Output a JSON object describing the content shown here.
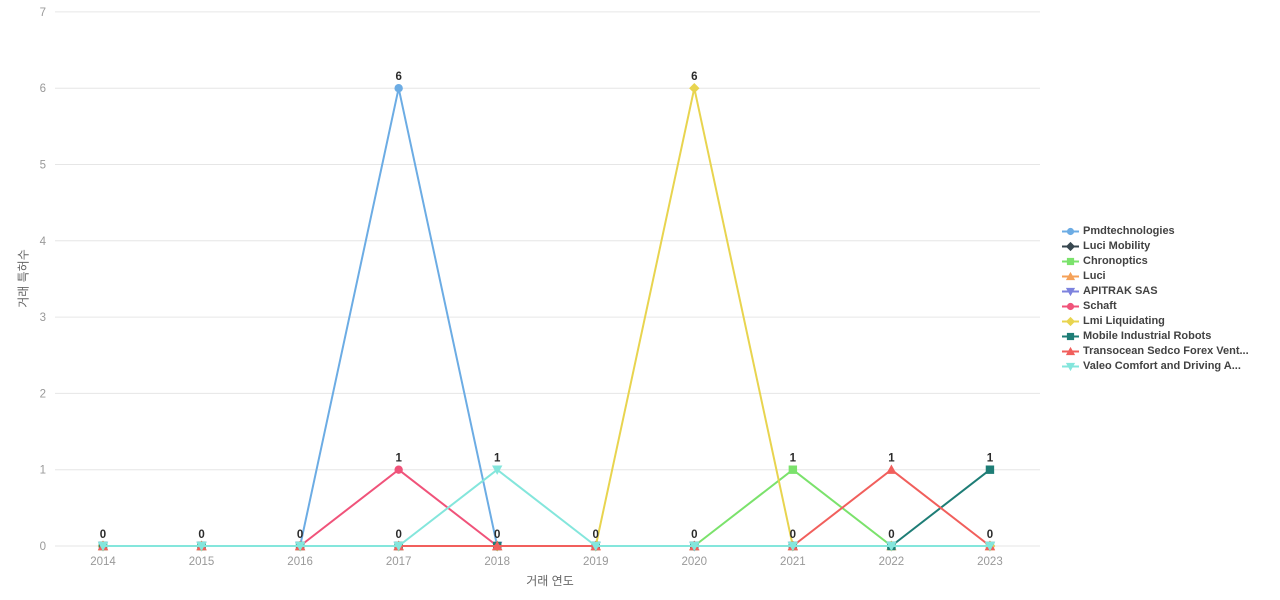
{
  "chart_data": {
    "type": "line",
    "title": "",
    "xlabel": "거래 연도",
    "ylabel": "거래 특허수",
    "x": [
      "2014",
      "2015",
      "2016",
      "2017",
      "2018",
      "2019",
      "2020",
      "2021",
      "2022",
      "2023"
    ],
    "ylim": [
      0,
      7
    ],
    "yticks": [
      0,
      1,
      2,
      3,
      4,
      5,
      6,
      7
    ],
    "grid": "horizontal",
    "legend_position": "right",
    "data_label_color": "#2b2b2b",
    "grid_color": "#e6e6e6",
    "tick_label_color": "#999999",
    "series": [
      {
        "name": "Pmdtechnologies",
        "color": "#6cace4",
        "symbol": "circle",
        "values": [
          0,
          0,
          0,
          6,
          0,
          0,
          0,
          0,
          0,
          0
        ]
      },
      {
        "name": "Luci Mobility",
        "color": "#37474f",
        "symbol": "diamond",
        "values": [
          0,
          0,
          0,
          0,
          0,
          0,
          0,
          0,
          0,
          0
        ]
      },
      {
        "name": "Chronoptics",
        "color": "#7be26c",
        "symbol": "square",
        "values": [
          0,
          0,
          0,
          0,
          0,
          0,
          0,
          1,
          0,
          0
        ]
      },
      {
        "name": "Luci",
        "color": "#f5a158",
        "symbol": "triangle-up",
        "values": [
          0,
          0,
          0,
          0,
          0,
          0,
          0,
          0,
          0,
          0
        ]
      },
      {
        "name": "APITRAK SAS",
        "color": "#7c82de",
        "symbol": "triangle-down",
        "values": [
          0,
          0,
          0,
          0,
          0,
          0,
          0,
          0,
          0,
          0
        ]
      },
      {
        "name": "Schaft",
        "color": "#f0537a",
        "symbol": "circle",
        "values": [
          0,
          0,
          0,
          1,
          0,
          0,
          0,
          0,
          0,
          0
        ]
      },
      {
        "name": "Lmi Liquidating",
        "color": "#e8d44f",
        "symbol": "diamond",
        "values": [
          0,
          0,
          0,
          0,
          0,
          0,
          6,
          0,
          0,
          0
        ]
      },
      {
        "name": "Mobile Industrial Robots",
        "color": "#1e7d76",
        "symbol": "square",
        "values": [
          0,
          0,
          0,
          0,
          0,
          0,
          0,
          0,
          0,
          1
        ]
      },
      {
        "name": "Transocean Sedco Forex Vent...",
        "color": "#f15f5c",
        "symbol": "triangle-up",
        "values": [
          0,
          0,
          0,
          0,
          0,
          0,
          0,
          0,
          1,
          0
        ]
      },
      {
        "name": "Valeo Comfort and Driving A...",
        "color": "#84e6dc",
        "symbol": "triangle-down",
        "values": [
          0,
          0,
          0,
          0,
          1,
          0,
          0,
          0,
          0,
          0
        ]
      }
    ]
  }
}
